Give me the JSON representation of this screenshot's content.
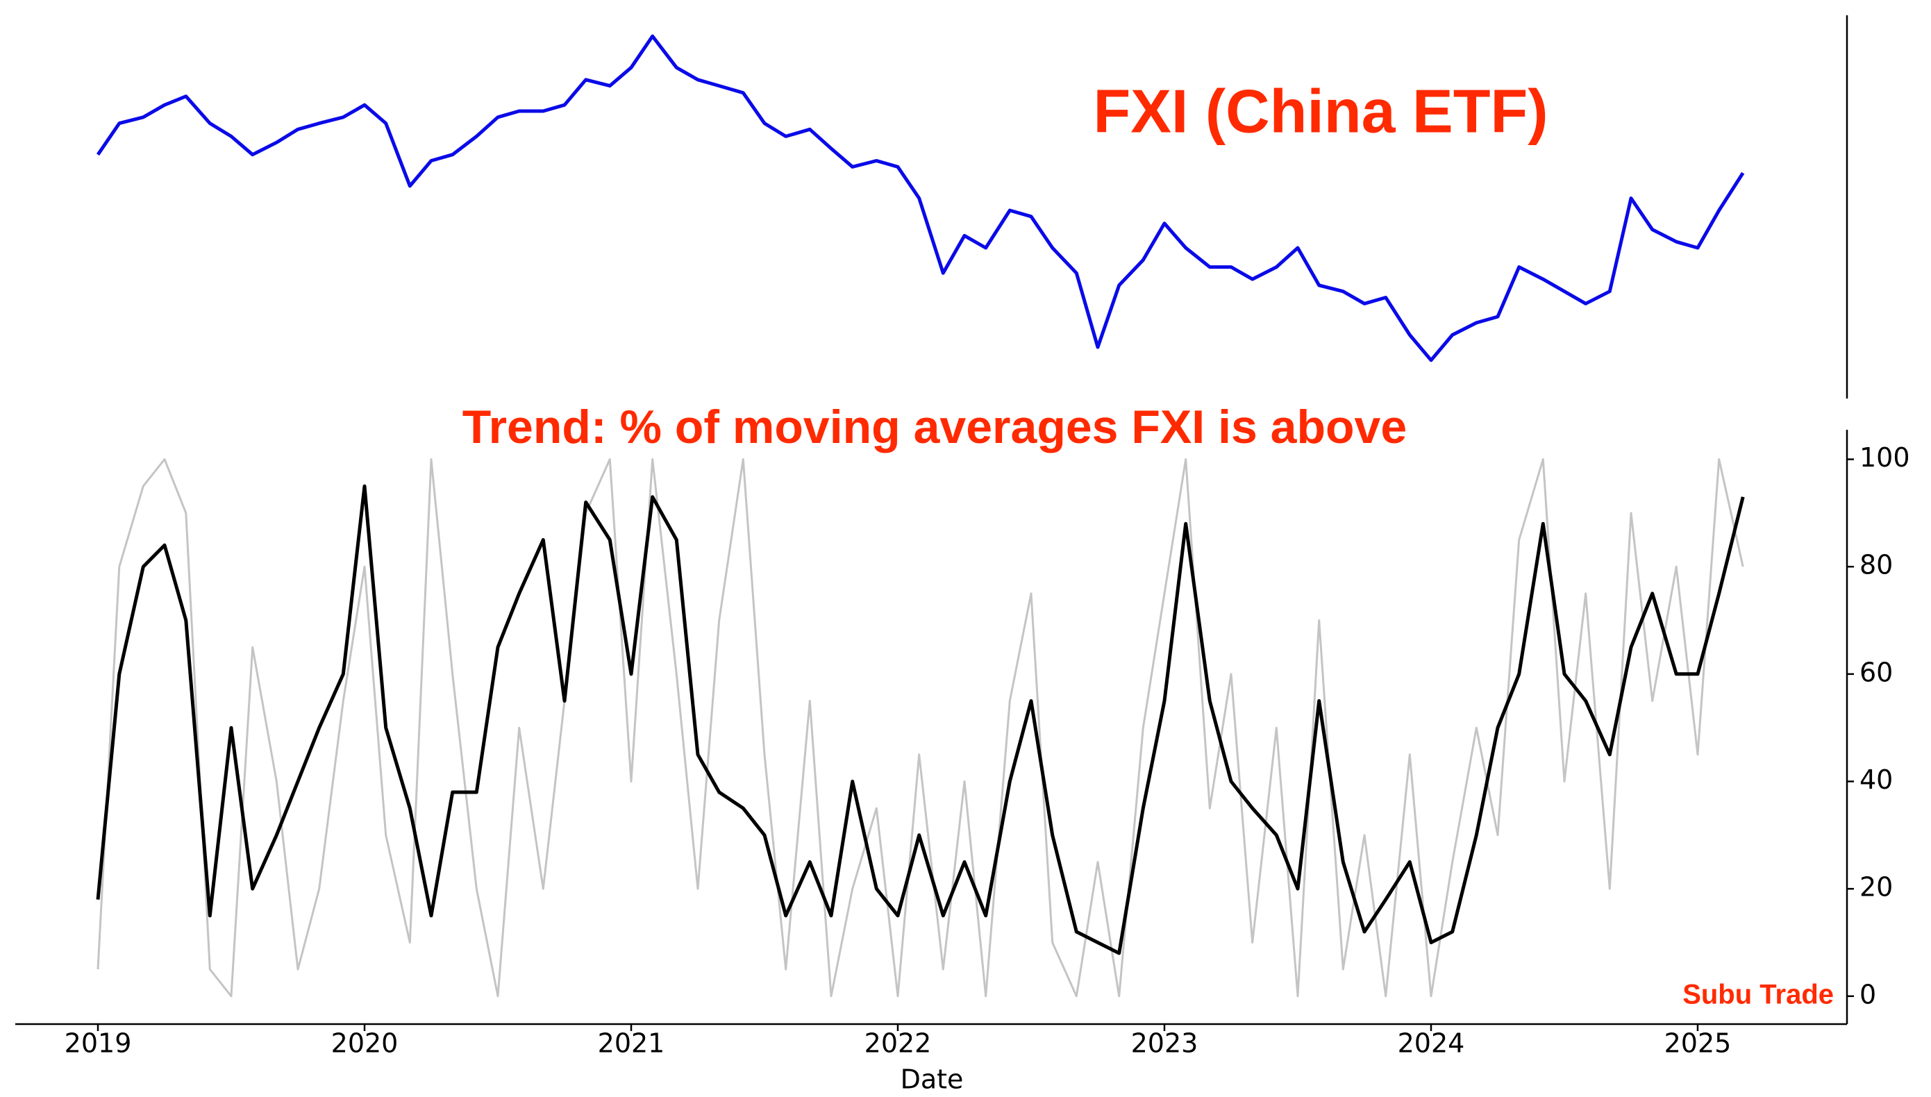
{
  "chart_data": [
    {
      "type": "line",
      "annotation": "FXI (China ETF)",
      "x": [
        2019.0,
        2019.08,
        2019.17,
        2019.25,
        2019.33,
        2019.42,
        2019.5,
        2019.58,
        2019.67,
        2019.75,
        2019.83,
        2019.92,
        2020.0,
        2020.08,
        2020.17,
        2020.25,
        2020.33,
        2020.42,
        2020.5,
        2020.58,
        2020.67,
        2020.75,
        2020.83,
        2020.92,
        2021.0,
        2021.08,
        2021.17,
        2021.25,
        2021.33,
        2021.42,
        2021.5,
        2021.58,
        2021.67,
        2021.75,
        2021.83,
        2021.92,
        2022.0,
        2022.08,
        2022.17,
        2022.25,
        2022.33,
        2022.42,
        2022.5,
        2022.58,
        2022.67,
        2022.75,
        2022.83,
        2022.92,
        2023.0,
        2023.08,
        2023.17,
        2023.25,
        2023.33,
        2023.42,
        2023.5,
        2023.58,
        2023.67,
        2023.75,
        2023.83,
        2023.92,
        2024.0,
        2024.08,
        2024.17,
        2024.25,
        2024.33,
        2024.42,
        2024.5,
        2024.58,
        2024.67,
        2024.75,
        2024.83,
        2024.92,
        2025.0,
        2025.08,
        2025.17
      ],
      "series": [
        {
          "color": "#0a0ae8",
          "values": [
            40,
            43.6,
            44.3,
            45.7,
            46.7,
            43.6,
            42.1,
            40,
            41.4,
            42.9,
            43.6,
            44.3,
            45.7,
            43.6,
            36.4,
            39.3,
            40,
            42.1,
            44.3,
            45,
            45,
            45.7,
            48.6,
            47.9,
            50,
            53.6,
            50,
            48.6,
            47.9,
            47.1,
            43.6,
            42.1,
            42.9,
            40.7,
            38.6,
            39.3,
            38.6,
            35,
            26.4,
            30.7,
            29.3,
            33.6,
            32.9,
            29.3,
            26.4,
            17.9,
            25,
            27.9,
            32.1,
            29.3,
            27.1,
            27.1,
            25.7,
            27.1,
            29.3,
            25,
            24.3,
            22.9,
            23.6,
            19.3,
            16.4,
            19.3,
            20.7,
            21.4,
            27.1,
            25.7,
            24.3,
            22.9,
            24.3,
            35,
            31.4,
            30,
            29.3,
            33.6,
            37.9
          ]
        }
      ],
      "xlim": [
        2018.69,
        2025.56
      ],
      "ylim": [
        12,
        56
      ]
    },
    {
      "type": "line",
      "title": "Trend: % of moving averages FXI is above",
      "annotation": "Subu Trade",
      "xlabel": "Date",
      "x": [
        2019.0,
        2019.08,
        2019.17,
        2019.25,
        2019.33,
        2019.42,
        2019.5,
        2019.58,
        2019.67,
        2019.75,
        2019.83,
        2019.92,
        2020.0,
        2020.08,
        2020.17,
        2020.25,
        2020.33,
        2020.42,
        2020.5,
        2020.58,
        2020.67,
        2020.75,
        2020.83,
        2020.92,
        2021.0,
        2021.08,
        2021.17,
        2021.25,
        2021.33,
        2021.42,
        2021.5,
        2021.58,
        2021.67,
        2021.75,
        2021.83,
        2021.92,
        2022.0,
        2022.08,
        2022.17,
        2022.25,
        2022.33,
        2022.42,
        2022.5,
        2022.58,
        2022.67,
        2022.75,
        2022.83,
        2022.92,
        2023.0,
        2023.08,
        2023.17,
        2023.25,
        2023.33,
        2023.42,
        2023.5,
        2023.58,
        2023.67,
        2023.75,
        2023.83,
        2023.92,
        2024.0,
        2024.08,
        2024.17,
        2024.25,
        2024.33,
        2024.42,
        2024.5,
        2024.58,
        2024.67,
        2024.75,
        2024.83,
        2024.92,
        2025.0,
        2025.08,
        2025.17
      ],
      "series": [
        {
          "color": "#c4c4c4",
          "values": [
            5,
            80,
            95,
            100,
            90,
            5,
            0,
            65,
            40,
            5,
            20,
            55,
            80,
            30,
            10,
            100,
            60,
            20,
            0,
            50,
            20,
            55,
            90,
            100,
            40,
            100,
            60,
            20,
            70,
            100,
            45,
            5,
            55,
            0,
            20,
            35,
            0,
            45,
            5,
            40,
            0,
            55,
            75,
            10,
            0,
            25,
            0,
            50,
            75,
            100,
            35,
            60,
            10,
            50,
            0,
            70,
            5,
            30,
            0,
            45,
            0,
            25,
            50,
            30,
            85,
            100,
            40,
            75,
            20,
            90,
            55,
            80,
            45,
            100,
            80
          ]
        },
        {
          "color": "#000000",
          "values": [
            18,
            60,
            80,
            84,
            70,
            15,
            50,
            20,
            30,
            40,
            50,
            60,
            95,
            50,
            35,
            15,
            38,
            38,
            65,
            75,
            85,
            55,
            92,
            85,
            60,
            93,
            85,
            45,
            38,
            35,
            30,
            15,
            25,
            15,
            40,
            20,
            15,
            30,
            15,
            25,
            15,
            40,
            55,
            30,
            12,
            10,
            8,
            35,
            55,
            88,
            55,
            40,
            35,
            30,
            20,
            55,
            25,
            12,
            18,
            25,
            10,
            12,
            30,
            50,
            60,
            88,
            60,
            55,
            45,
            65,
            75,
            60,
            60,
            75,
            93
          ]
        }
      ],
      "xlim": [
        2018.69,
        2025.56
      ],
      "ylim": [
        -5.2,
        105.5
      ],
      "xticks": [
        2019,
        2020,
        2021,
        2022,
        2023,
        2024,
        2025
      ],
      "yticks": [
        0,
        20,
        40,
        60,
        80,
        100
      ]
    }
  ]
}
